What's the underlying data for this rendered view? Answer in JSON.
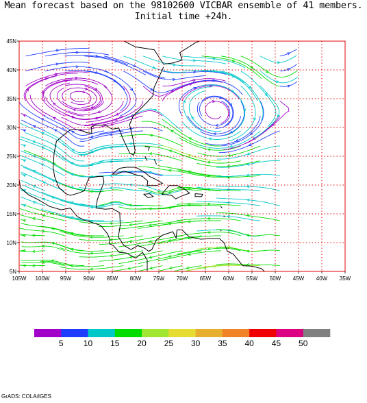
{
  "title_line1": "Mean forecast based on the 98102600 VICBAR ensemble of 41 members.",
  "title_line2": "Initial time +24h.",
  "map": {
    "lon_range": [
      -105,
      -35
    ],
    "lat_range": [
      5,
      45
    ],
    "x_ticks": [
      "105W",
      "100W",
      "95W",
      "90W",
      "85W",
      "80W",
      "75W",
      "70W",
      "65W",
      "60W",
      "55W",
      "50W",
      "45W",
      "40W",
      "35W"
    ],
    "y_ticks": [
      "5N",
      "10N",
      "15N",
      "20N",
      "25N",
      "30N",
      "35N",
      "40N",
      "45N"
    ],
    "data_east_limit_lon": -45,
    "grid_color": "#e00000",
    "frame_color": "#e00000",
    "coast_color": "#000000"
  },
  "colorbar": {
    "colors": [
      "#a000c8",
      "#1e3cff",
      "#00c8c8",
      "#00dc00",
      "#a0e632",
      "#e6dc32",
      "#e6af2d",
      "#f08228",
      "#f00000",
      "#dc0082",
      "#808080"
    ],
    "labels": [
      "5",
      "10",
      "15",
      "20",
      "25",
      "30",
      "35",
      "40",
      "45",
      "50"
    ]
  },
  "credit": "GrADS: COLA/IGES"
}
